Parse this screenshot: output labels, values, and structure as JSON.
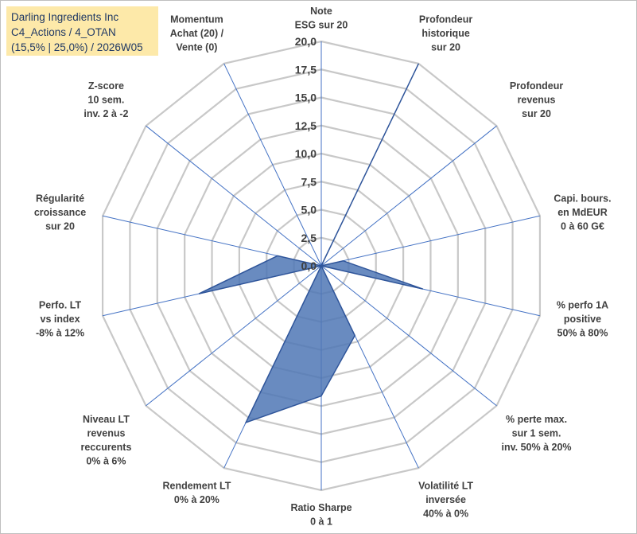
{
  "title_box": {
    "line1": "Darling Ingredients Inc",
    "line2": "C4_Actions / 4_OTAN",
    "line3": "(15,5% | 25,0%) / 2026W05"
  },
  "colors": {
    "series_fill": "#4f77b5",
    "series_stroke": "#2f559a",
    "grid": "#c8c8c8",
    "axis": "#4472c4",
    "title_bg": "#fde9a9",
    "title_text": "#1f3864"
  },
  "chart_data": {
    "type": "radar",
    "rmin": 0,
    "rmax": 20,
    "tick_values": [
      0,
      2.5,
      5,
      7.5,
      10,
      12.5,
      15,
      17.5,
      20
    ],
    "tick_labels": [
      "0,0",
      "2,5",
      "5,0",
      "7,5",
      "10,0",
      "12,5",
      "15,0",
      "17,5",
      "20,0"
    ],
    "axes": [
      {
        "lines": [
          "Note",
          "ESG sur 20"
        ]
      },
      {
        "lines": [
          "Profondeur",
          "historique",
          "sur 20"
        ]
      },
      {
        "lines": [
          "Profondeur",
          "revenus",
          "sur 20"
        ]
      },
      {
        "lines": [
          "Capi. bours.",
          "en MdEUR",
          "0 à 60 G€"
        ]
      },
      {
        "lines": [
          "% perfo 1A",
          "positive",
          "50% à 80%"
        ]
      },
      {
        "lines": [
          "% perte max.",
          "sur 1 sem.",
          "inv. 50% à 20%"
        ]
      },
      {
        "lines": [
          "Volatilité LT",
          "inversée",
          "40% à 0%"
        ]
      },
      {
        "lines": [
          "Ratio Sharpe",
          "0 à 1"
        ]
      },
      {
        "lines": [
          "Rendement LT",
          "0% à 20%"
        ]
      },
      {
        "lines": [
          "Niveau LT",
          "revenus",
          "reccurents",
          "0% à 6%"
        ]
      },
      {
        "lines": [
          "Perfo. LT",
          "vs index",
          "-8% à 12%"
        ]
      },
      {
        "lines": [
          "Régularité",
          "croissance",
          "sur 20"
        ]
      },
      {
        "lines": [
          "Z-score",
          "10 sem.",
          "inv. 2 à -2"
        ]
      },
      {
        "lines": [
          "Momentum",
          "Achat (20) /",
          "Vente (0)"
        ]
      }
    ],
    "series": [
      {
        "name": "Darling Ingredients Inc",
        "values": [
          0,
          20,
          0,
          2.0,
          9.3,
          0,
          6.9,
          11.6,
          15.5,
          0,
          11.2,
          4.0,
          0,
          0
        ]
      }
    ]
  }
}
